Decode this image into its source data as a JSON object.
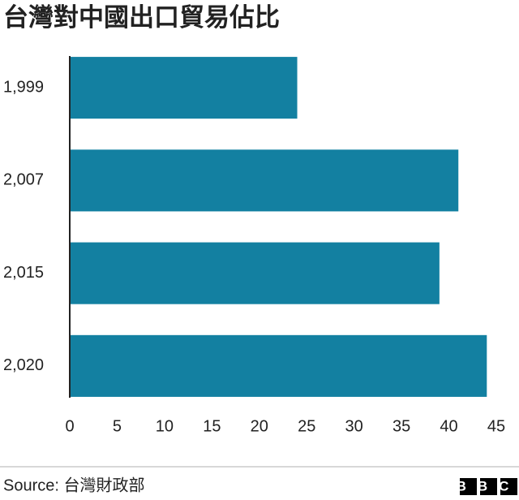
{
  "chart_data": {
    "type": "barh",
    "title": "台灣對中國出口貿易佔比",
    "categories": [
      "1,999",
      "2,007",
      "2,015",
      "2,020"
    ],
    "values": [
      24,
      41,
      39,
      44
    ],
    "color": "#1380a1",
    "xlim": [
      0,
      45
    ],
    "xticks": [
      0,
      5,
      10,
      15,
      20,
      25,
      30,
      35,
      40,
      45
    ],
    "grid": false,
    "source": "Source: 台灣財政部",
    "logo": "BBC"
  }
}
